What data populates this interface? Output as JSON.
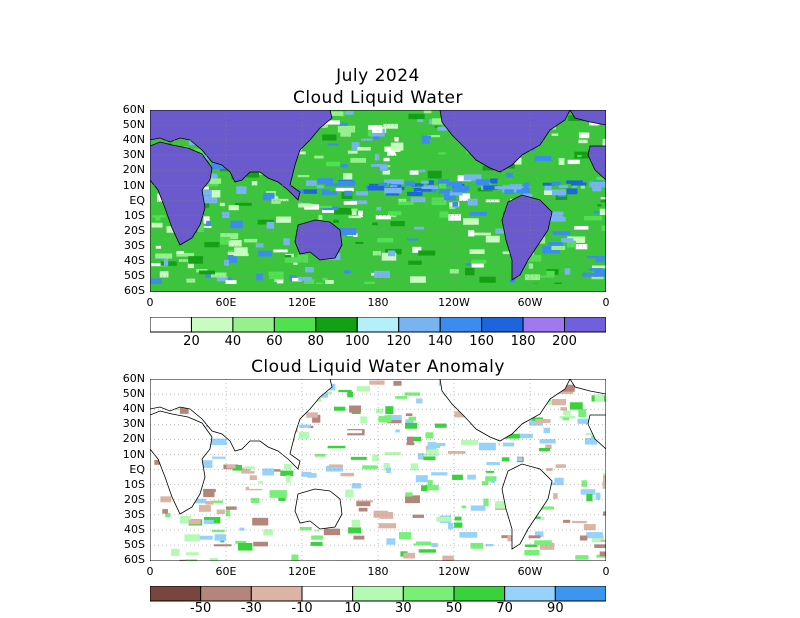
{
  "header": {
    "month": "July 2024",
    "map1_title": "Cloud Liquid Water",
    "map2_title": "Cloud Liquid Water Anomaly"
  },
  "lat_labels": [
    "60N",
    "50N",
    "40N",
    "30N",
    "20N",
    "10N",
    "EQ",
    "10S",
    "20S",
    "30S",
    "40S",
    "50S",
    "60S"
  ],
  "lon_labels": [
    "0",
    "60E",
    "120E",
    "180",
    "120W",
    "60W",
    "0"
  ],
  "colorbar1": {
    "labels": [
      "20",
      "40",
      "60",
      "80",
      "100",
      "120",
      "140",
      "160",
      "180",
      "200"
    ],
    "colors": [
      "#ffffff",
      "#c8fcc0",
      "#96f08c",
      "#50e050",
      "#14a014",
      "#b4f0fa",
      "#78b4f0",
      "#3c8cf0",
      "#1e64dc",
      "#a078f0",
      "#7060dc"
    ]
  },
  "colorbar2": {
    "labels": [
      "-50",
      "-30",
      "-10",
      "10",
      "30",
      "50",
      "70",
      "90"
    ],
    "colors": [
      "#78463c",
      "#b4857a",
      "#dcb4a5",
      "#ffffff",
      "#b4fab4",
      "#78f078",
      "#37d23c",
      "#96d2fa",
      "#3c96f0"
    ]
  }
}
